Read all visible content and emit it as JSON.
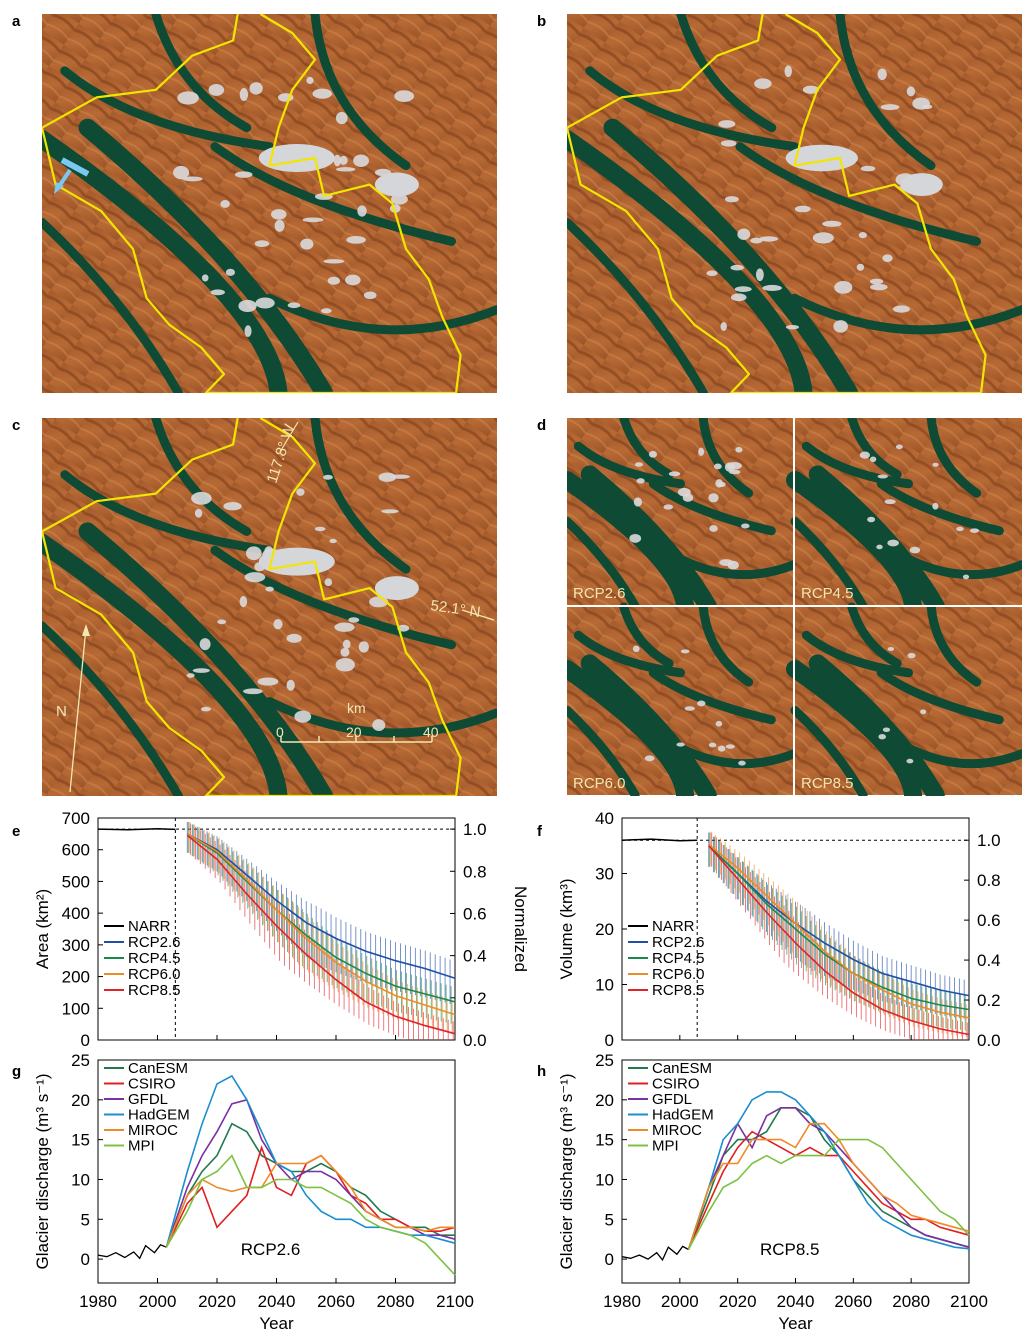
{
  "panel_letters": [
    "a",
    "b",
    "c",
    "d",
    "e",
    "f",
    "g",
    "h"
  ],
  "map_annotations": {
    "lon_label": "117.8° W",
    "lat_label": "52.1° N",
    "north_label": "N",
    "scale_unit": "km",
    "scale_ticks": [
      "0",
      "20",
      "40"
    ]
  },
  "scenario_labels": [
    "RCP2.6",
    "RCP4.5",
    "RCP6.0",
    "RCP8.5"
  ],
  "colors": {
    "NARR": "#000000",
    "RCP2.6": "#1f4fa8",
    "RCP4.5": "#1a8a4a",
    "RCP6.0": "#f08a24",
    "RCP8.5": "#e0232a",
    "CanESM": "#1f7a4c",
    "CSIRO": "#e02020",
    "GFDL": "#7b2fa0",
    "HadGEM": "#1b8ecf",
    "MIROC": "#f08a24",
    "MPI": "#7cc242",
    "boundary": "#f2e600",
    "water_arrow": "#7cc8f0"
  },
  "chart_data": [
    {
      "id": "e",
      "type": "line",
      "ylabel": "Area (km²)",
      "y2label": "Normalized",
      "xlabel": "",
      "ylim": [
        0,
        700
      ],
      "yticks": [
        0,
        100,
        200,
        300,
        400,
        500,
        600,
        700
      ],
      "y2ticks": [
        "0.0",
        "0.2",
        "0.4",
        "0.6",
        "0.8",
        "1.0"
      ],
      "xlim": [
        1980,
        2100
      ],
      "x": [
        2010,
        2020,
        2030,
        2040,
        2050,
        2060,
        2070,
        2080,
        2090,
        2100
      ],
      "narr": {
        "name": "NARR",
        "x": [
          1980,
          1990,
          2000,
          2006
        ],
        "values": [
          665,
          663,
          666,
          664
        ]
      },
      "series": [
        {
          "name": "RCP2.6",
          "values": [
            650,
            600,
            520,
            440,
            370,
            320,
            280,
            250,
            225,
            195
          ]
        },
        {
          "name": "RCP4.5",
          "values": [
            650,
            590,
            500,
            410,
            330,
            260,
            210,
            170,
            145,
            120
          ]
        },
        {
          "name": "RCP6.0",
          "values": [
            650,
            595,
            505,
            410,
            320,
            245,
            185,
            140,
            110,
            80
          ]
        },
        {
          "name": "RCP8.5",
          "values": [
            645,
            570,
            460,
            360,
            270,
            190,
            120,
            75,
            45,
            20
          ]
        }
      ]
    },
    {
      "id": "f",
      "type": "line",
      "ylabel": "Volume (km³)",
      "y2label": "Normalized",
      "xlabel": "",
      "ylim": [
        0,
        40
      ],
      "yticks": [
        0,
        10,
        20,
        30,
        40
      ],
      "y2ticks": [
        "0.0",
        "0.2",
        "0.4",
        "0.6",
        "0.8",
        "1.0"
      ],
      "xlim": [
        1980,
        2100
      ],
      "x": [
        2010,
        2020,
        2030,
        2040,
        2050,
        2060,
        2070,
        2080,
        2090,
        2100
      ],
      "narr": {
        "name": "NARR",
        "x": [
          1980,
          1990,
          2000,
          2006
        ],
        "values": [
          36,
          36.2,
          35.9,
          36
        ]
      },
      "series": [
        {
          "name": "RCP2.6",
          "values": [
            35,
            30,
            25,
            21,
            17.5,
            14.5,
            12,
            10.5,
            9,
            8
          ]
        },
        {
          "name": "RCP4.5",
          "values": [
            35,
            30,
            24.5,
            20,
            15.5,
            12,
            9.5,
            7.5,
            6.3,
            5.5
          ]
        },
        {
          "name": "RCP6.0",
          "values": [
            35.2,
            31,
            26,
            21,
            16,
            12,
            9,
            6.5,
            5,
            4
          ]
        },
        {
          "name": "RCP8.5",
          "values": [
            35,
            29,
            23,
            17.5,
            12.5,
            8.5,
            5.5,
            3.5,
            2,
            1
          ]
        }
      ]
    },
    {
      "id": "g",
      "type": "line",
      "annotation": "RCP2.6",
      "ylabel": "Glacier discharge (m³ s⁻¹)",
      "xlabel": "Year",
      "ylim": [
        -3,
        25
      ],
      "yticks": [
        0,
        5,
        10,
        15,
        20,
        25
      ],
      "xlim": [
        1980,
        2100
      ],
      "xticks": [
        1980,
        2000,
        2020,
        2040,
        2060,
        2080,
        2100
      ],
      "obs": {
        "x": [
          1980,
          1983,
          1986,
          1989,
          1992,
          1994,
          1996,
          1999,
          2001,
          2003
        ],
        "values": [
          0.5,
          0.3,
          0.8,
          0.2,
          0.9,
          0.1,
          1.7,
          0.8,
          1.8,
          1.5
        ]
      },
      "x": [
        2003,
        2010,
        2015,
        2020,
        2025,
        2030,
        2035,
        2040,
        2045,
        2050,
        2055,
        2060,
        2065,
        2070,
        2075,
        2080,
        2085,
        2090,
        2095,
        2100
      ],
      "series": [
        {
          "name": "CanESM",
          "values": [
            1.5,
            8,
            11,
            13,
            17,
            16,
            13,
            12,
            11,
            11,
            12,
            11,
            9,
            8,
            6,
            5,
            4,
            4,
            3,
            3
          ]
        },
        {
          "name": "CSIRO",
          "values": [
            1.5,
            7,
            9,
            4,
            6,
            8,
            14,
            9,
            8,
            12,
            13,
            11,
            8,
            7,
            5,
            5,
            4,
            3.5,
            3.5,
            4
          ]
        },
        {
          "name": "GFDL",
          "values": [
            1.5,
            9,
            13,
            16,
            19.5,
            20,
            15,
            12,
            10,
            11,
            11,
            10,
            8,
            6,
            5,
            4,
            4,
            3,
            3,
            2.5
          ]
        },
        {
          "name": "HadGEM",
          "values": [
            1.5,
            11,
            17,
            22,
            23,
            20,
            16,
            12,
            11,
            8,
            6,
            5,
            5,
            4,
            4,
            3.5,
            3,
            3,
            2.5,
            2
          ]
        },
        {
          "name": "MIROC",
          "values": [
            1.5,
            8,
            10,
            9,
            8.5,
            9,
            9,
            12,
            12,
            12,
            13,
            11,
            9,
            6,
            5,
            4,
            4,
            3.5,
            4,
            4
          ]
        },
        {
          "name": "MPI",
          "values": [
            1.5,
            6,
            10,
            11,
            13,
            9,
            9,
            10,
            10,
            9,
            9,
            8,
            7,
            5,
            4,
            3.5,
            3,
            2,
            0,
            -2
          ]
        }
      ]
    },
    {
      "id": "h",
      "type": "line",
      "annotation": "RCP8.5",
      "ylabel": "Glacier discharge (m³ s⁻¹)",
      "xlabel": "Year",
      "ylim": [
        -3,
        25
      ],
      "yticks": [
        0,
        5,
        10,
        15,
        20,
        25
      ],
      "xlim": [
        1980,
        2100
      ],
      "xticks": [
        1980,
        2000,
        2020,
        2040,
        2060,
        2080,
        2100
      ],
      "obs": {
        "x": [
          1980,
          1983,
          1986,
          1989,
          1992,
          1994,
          1996,
          1999,
          2001,
          2003
        ],
        "values": [
          0.3,
          0.1,
          0.5,
          0,
          0.8,
          -0.1,
          1.5,
          0.6,
          1.6,
          1.2
        ]
      },
      "x": [
        2003,
        2010,
        2015,
        2020,
        2025,
        2030,
        2035,
        2040,
        2045,
        2050,
        2055,
        2060,
        2065,
        2070,
        2075,
        2080,
        2085,
        2090,
        2095,
        2100
      ],
      "series": [
        {
          "name": "CanESM",
          "values": [
            1.2,
            8,
            13,
            15,
            15,
            16,
            19,
            19,
            18,
            15,
            13,
            10,
            8,
            6,
            5,
            4,
            3,
            2.5,
            2,
            1.5
          ]
        },
        {
          "name": "CSIRO",
          "values": [
            1.2,
            7,
            11,
            14,
            16,
            15,
            14,
            13,
            14,
            13,
            13,
            11,
            9,
            7,
            6,
            5,
            5,
            4,
            3.5,
            3
          ]
        },
        {
          "name": "GFDL",
          "values": [
            1.2,
            9,
            13,
            17,
            14,
            18,
            19,
            19,
            17,
            16,
            14,
            12,
            10,
            8,
            6,
            4,
            3,
            2.5,
            2,
            1.5
          ]
        },
        {
          "name": "HadGEM",
          "values": [
            1.2,
            9,
            15,
            17,
            20,
            21,
            21,
            20,
            18,
            16,
            13,
            10,
            7,
            5,
            4,
            3,
            2.5,
            2,
            1.5,
            1.3
          ]
        },
        {
          "name": "MIROC",
          "values": [
            1.2,
            9,
            12,
            12,
            15,
            15,
            15,
            14,
            17,
            17,
            15,
            12,
            10,
            8,
            7,
            5.5,
            5,
            4.5,
            4,
            3.5
          ]
        },
        {
          "name": "MPI",
          "values": [
            1.2,
            6,
            9,
            10,
            12,
            13,
            12,
            13,
            13,
            13,
            15,
            15,
            15,
            14,
            12,
            10,
            8,
            6,
            5,
            3
          ]
        }
      ]
    }
  ]
}
